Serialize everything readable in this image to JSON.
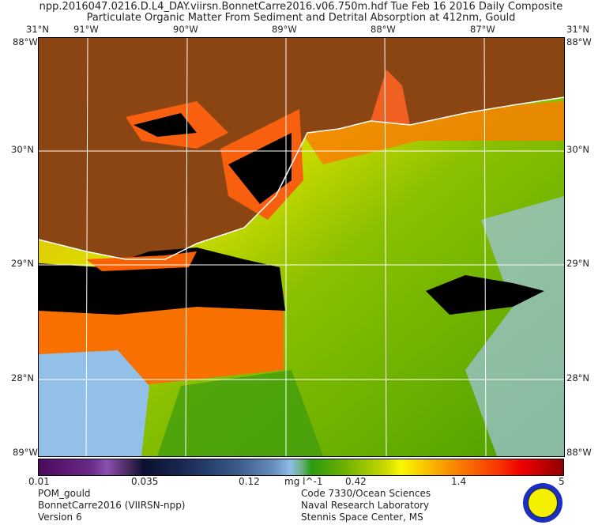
{
  "header": {
    "line1": "npp.2016047.0216.D.L4_DAY.viirsn.BonnetCarre2016.v06.750m.hdf     Tue Feb 16 2016 Daily Composite",
    "line2": "Particulate Organic Matter From Sediment and Detrital Absorption at 412nm, Gould"
  },
  "graticule": {
    "top": [
      "91°W",
      "90°W",
      "89°W",
      "88°W",
      "87°W"
    ],
    "corner_top_left": "31°N",
    "corner_top_right": "31°N",
    "corner_left": "88°W",
    "corner_right": "88°W",
    "corner_bottom_left": "89°W",
    "corner_bottom_right": "88°W",
    "left": [
      "30°N",
      "29°N",
      "28°N"
    ],
    "right": [
      "30°N",
      "29°N",
      "28°N"
    ]
  },
  "colorbar": {
    "ticks": [
      "0.01",
      "0.035",
      "0.12",
      "0.42",
      "1.4",
      "5"
    ],
    "units": "mg l^-1",
    "range": [
      0.01,
      5
    ],
    "scale": "log"
  },
  "footer": {
    "left": [
      "POM_gould",
      "BonnetCarre2016 (VIIRSN-npp)",
      "Version 6"
    ],
    "right": [
      "Code 7330/Ocean Sciences",
      "Naval Research Laboratory",
      "Stennis Space Center, MS"
    ]
  },
  "colors": {
    "land": "#8b4513",
    "nodata": "#000000",
    "grid": "#ffffff"
  }
}
